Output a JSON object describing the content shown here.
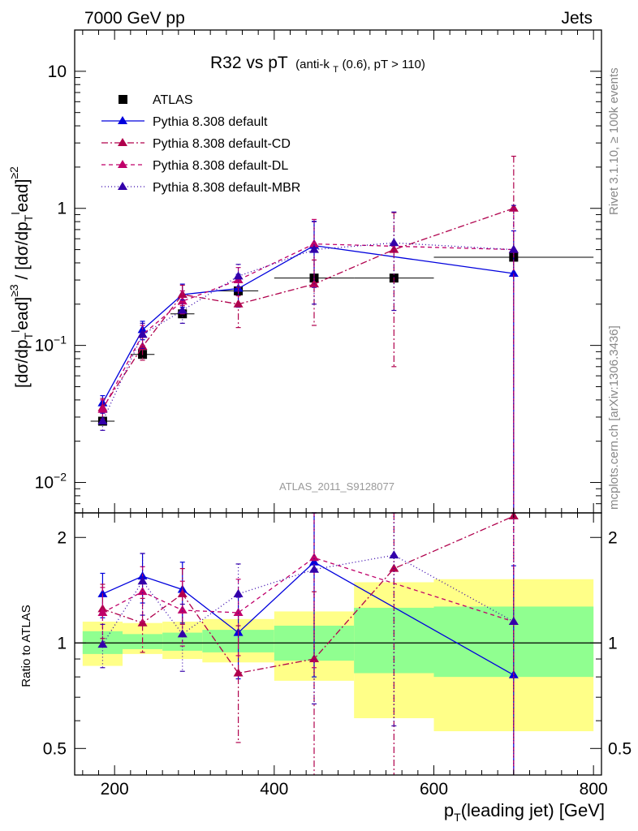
{
  "header": {
    "left": "7000 GeV pp",
    "right": "Jets"
  },
  "side_labels": {
    "rivet": "Rivet 3.1.10, ≥ 100k events",
    "mcplots": "mcplots.cern.ch [arXiv:1306.3436]"
  },
  "watermark": "ATLAS_2011_S9128077",
  "main_title": {
    "text": "R32 vs pT",
    "sub_prefix": "(anti-k",
    "sub_index": "T",
    "sub_suffix": "(0.6), pT > 110)"
  },
  "ylabel_main": "[dσ/dp_T^lead]^{≥3} / [dσ/dp_T^lead]^{≥2}",
  "ylabel_ratio": "Ratio to ATLAS",
  "xlabel": {
    "prefix": "p",
    "sub": "T",
    "suffix": "(leading jet) [GeV]"
  },
  "colors": {
    "atlas": "#000000",
    "default": "#0000dd",
    "cd": "#b0004c",
    "dl": "#c0006a",
    "mbr": "#3300aa",
    "band_yellow": "#ffff88",
    "band_green": "#90ff90"
  },
  "legend": [
    {
      "label": "ATLAS"
    },
    {
      "label": "Pythia 8.308 default"
    },
    {
      "label": "Pythia 8.308 default-CD"
    },
    {
      "label": "Pythia 8.308 default-DL"
    },
    {
      "label": "Pythia 8.308 default-MBR"
    }
  ],
  "chart_data": [
    {
      "type": "scatter",
      "title": "R32 vs pT",
      "xlabel": "pT(leading jet) [GeV]",
      "ylabel": "[dσ/dpT lead]≥3 / [dσ/dpT lead]≥2",
      "xlim": [
        150,
        810
      ],
      "ylim": [
        0.006,
        20
      ],
      "yscale": "log",
      "x_ticks": [
        200,
        400,
        600,
        800
      ],
      "y_ticks": [
        {
          "v": 0.01,
          "base": "10",
          "exp": "−2"
        },
        {
          "v": 0.1,
          "base": "10",
          "exp": "−1"
        },
        {
          "v": 1,
          "label": "1"
        },
        {
          "v": 10,
          "label": "10"
        }
      ],
      "atlas": {
        "x": [
          185,
          235,
          285,
          355,
          450,
          550,
          700
        ],
        "xerr": [
          15,
          15,
          15,
          25,
          50,
          50,
          100
        ],
        "y": [
          0.028,
          0.086,
          0.17,
          0.25,
          0.31,
          0.31,
          0.44
        ]
      },
      "series": [
        {
          "name": "Pythia 8.308 default",
          "key": "default",
          "dash": "",
          "x": [
            185,
            235,
            285,
            355,
            450,
            700
          ],
          "y": [
            0.038,
            0.13,
            0.235,
            0.26,
            0.535,
            0.335
          ],
          "err": [
            0.005,
            0.02,
            0.045,
            0.07,
            0.27,
            0.35
          ]
        },
        {
          "name": "Pythia 8.308 default-CD",
          "key": "cd",
          "dash": "8,3,2,3",
          "x": [
            185,
            235,
            285,
            355,
            450,
            550,
            700
          ],
          "y": [
            0.035,
            0.098,
            0.235,
            0.2,
            0.28,
            0.5,
            1.0
          ],
          "err": [
            0.006,
            0.02,
            0.04,
            0.065,
            0.14,
            0.43,
            1.4
          ]
        },
        {
          "name": "Pythia 8.308 default-DL",
          "key": "dl",
          "dash": "5,4",
          "x": [
            185,
            235,
            285,
            355,
            450,
            700
          ],
          "y": [
            0.034,
            0.12,
            0.21,
            0.3,
            0.55,
            0.5
          ],
          "err": [
            0.006,
            0.02,
            0.04,
            0.07,
            0.28,
            0.5
          ]
        },
        {
          "name": "Pythia 8.308 default-MBR",
          "key": "mbr",
          "dash": "1,3",
          "x": [
            185,
            235,
            285,
            355,
            450,
            550,
            700
          ],
          "y": [
            0.028,
            0.12,
            0.18,
            0.32,
            0.5,
            0.56,
            0.5
          ],
          "err": [
            0.004,
            0.025,
            0.035,
            0.07,
            0.3,
            0.38,
            0.55
          ]
        }
      ]
    },
    {
      "type": "scatter",
      "title": "Ratio to ATLAS",
      "ylabel": "Ratio to ATLAS",
      "xlim": [
        150,
        810
      ],
      "ylim": [
        0.42,
        2.35
      ],
      "yscale": "log",
      "y_ticks": [
        {
          "v": 0.5,
          "label": "0.5"
        },
        {
          "v": 1,
          "label": "1"
        },
        {
          "v": 2,
          "label": "2"
        }
      ],
      "reference": 1,
      "bands": [
        {
          "x0": 160,
          "x1": 210,
          "yl": 0.86,
          "yh": 1.15,
          "gl": 0.93,
          "gh": 1.08
        },
        {
          "x0": 210,
          "x1": 260,
          "yl": 0.93,
          "yh": 1.14,
          "gl": 0.96,
          "gh": 1.06
        },
        {
          "x0": 260,
          "x1": 310,
          "yl": 0.9,
          "yh": 1.15,
          "gl": 0.95,
          "gh": 1.07
        },
        {
          "x0": 310,
          "x1": 400,
          "yl": 0.88,
          "yh": 1.17,
          "gl": 0.94,
          "gh": 1.09
        },
        {
          "x0": 400,
          "x1": 500,
          "yl": 0.78,
          "yh": 1.23,
          "gl": 0.89,
          "gh": 1.12
        },
        {
          "x0": 500,
          "x1": 600,
          "yl": 0.61,
          "yh": 1.49,
          "gl": 0.82,
          "gh": 1.26
        },
        {
          "x0": 600,
          "x1": 800,
          "yl": 0.56,
          "yh": 1.52,
          "gl": 0.8,
          "gh": 1.27
        }
      ],
      "series": [
        {
          "name": "Pythia 8.308 default",
          "key": "default",
          "dash": "",
          "x": [
            185,
            235,
            285,
            355,
            450,
            700
          ],
          "y": [
            1.38,
            1.55,
            1.42,
            1.07,
            1.7,
            0.81
          ],
          "err": [
            0.2,
            0.25,
            0.28,
            0.28,
            0.9,
            0.85
          ]
        },
        {
          "name": "Pythia 8.308 default-CD",
          "key": "cd",
          "dash": "8,3,2,3",
          "x": [
            185,
            235,
            285,
            355,
            450,
            550,
            700
          ],
          "y": [
            1.25,
            1.14,
            1.38,
            0.82,
            0.9,
            1.63,
            2.3
          ],
          "err": [
            0.22,
            0.2,
            0.25,
            0.3,
            0.5,
            1.4,
            3.2
          ]
        },
        {
          "name": "Pythia 8.308 default-DL",
          "key": "dl",
          "dash": "5,4",
          "x": [
            185,
            235,
            285,
            355,
            450,
            700
          ],
          "y": [
            1.22,
            1.4,
            1.24,
            1.22,
            1.75,
            1.15
          ],
          "err": [
            0.22,
            0.25,
            0.26,
            0.3,
            0.9,
            1.2
          ]
        },
        {
          "name": "Pythia 8.308 default-MBR",
          "key": "mbr",
          "dash": "1,3",
          "x": [
            185,
            235,
            285,
            355,
            450,
            550,
            700
          ],
          "y": [
            0.99,
            1.5,
            1.06,
            1.38,
            1.62,
            1.78,
            1.15
          ],
          "err": [
            0.14,
            0.3,
            0.23,
            0.3,
            0.95,
            1.2,
            1.25
          ]
        }
      ]
    }
  ]
}
